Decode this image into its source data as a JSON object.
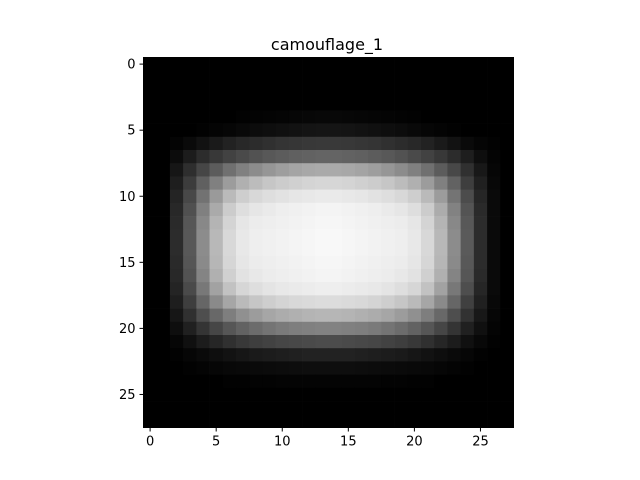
{
  "chart_data": {
    "type": "heatmap",
    "title": "camouflage_1",
    "xlabel": "",
    "ylabel": "",
    "colormap": "gray",
    "value_range": [
      0,
      255
    ],
    "xlim": [
      -0.5,
      27.5
    ],
    "ylim": [
      27.5,
      -0.5
    ],
    "xticks": [
      0,
      5,
      10,
      15,
      20,
      25
    ],
    "yticks": [
      0,
      5,
      10,
      15,
      20,
      25
    ],
    "xtick_labels": [
      "0",
      "5",
      "10",
      "15",
      "20",
      "25"
    ],
    "ytick_labels": [
      "0",
      "5",
      "10",
      "15",
      "20",
      "25"
    ],
    "grid": false,
    "legend": "none",
    "rows": 28,
    "cols": 28,
    "pixels": [
      [
        0,
        0,
        0,
        0,
        0,
        0,
        0,
        0,
        0,
        0,
        0,
        0,
        0,
        0,
        0,
        0,
        0,
        0,
        0,
        0,
        0,
        0,
        0,
        0,
        0,
        0,
        0,
        0
      ],
      [
        0,
        0,
        0,
        0,
        0,
        0,
        0,
        0,
        0,
        0,
        0,
        0,
        0,
        0,
        0,
        0,
        0,
        0,
        0,
        0,
        0,
        0,
        0,
        0,
        0,
        0,
        0,
        0
      ],
      [
        0,
        0,
        0,
        0,
        0,
        0,
        0,
        0,
        0,
        0,
        0,
        0,
        0,
        0,
        0,
        0,
        0,
        0,
        0,
        0,
        0,
        0,
        0,
        0,
        0,
        0,
        0,
        0
      ],
      [
        0,
        0,
        0,
        0,
        0,
        0,
        0,
        0,
        0,
        0,
        0,
        0,
        0,
        0,
        0,
        0,
        0,
        0,
        0,
        0,
        0,
        0,
        0,
        0,
        0,
        0,
        0,
        0
      ],
      [
        0,
        0,
        0,
        0,
        0,
        0,
        0,
        2,
        3,
        4,
        5,
        6,
        7,
        8,
        8,
        7,
        6,
        5,
        4,
        3,
        2,
        0,
        0,
        0,
        0,
        0,
        0,
        0
      ],
      [
        0,
        0,
        0,
        0,
        2,
        4,
        6,
        9,
        12,
        14,
        16,
        18,
        20,
        21,
        21,
        20,
        18,
        16,
        14,
        12,
        9,
        6,
        4,
        2,
        0,
        0,
        0,
        0
      ],
      [
        0,
        0,
        4,
        10,
        18,
        26,
        34,
        40,
        44,
        48,
        52,
        54,
        56,
        57,
        57,
        56,
        54,
        52,
        48,
        44,
        40,
        34,
        26,
        18,
        10,
        5,
        2,
        0
      ],
      [
        0,
        0,
        12,
        28,
        44,
        56,
        66,
        74,
        82,
        88,
        92,
        96,
        98,
        100,
        100,
        98,
        96,
        92,
        88,
        82,
        74,
        66,
        56,
        44,
        30,
        14,
        4,
        0
      ],
      [
        0,
        0,
        22,
        46,
        70,
        92,
        112,
        128,
        140,
        150,
        158,
        164,
        168,
        170,
        170,
        168,
        164,
        158,
        150,
        140,
        128,
        112,
        92,
        72,
        48,
        24,
        6,
        0
      ],
      [
        0,
        0,
        30,
        60,
        96,
        128,
        156,
        176,
        188,
        198,
        204,
        208,
        212,
        214,
        214,
        212,
        208,
        204,
        198,
        188,
        176,
        156,
        128,
        98,
        62,
        32,
        8,
        0
      ],
      [
        0,
        0,
        36,
        72,
        114,
        154,
        186,
        206,
        216,
        222,
        226,
        230,
        232,
        234,
        234,
        232,
        230,
        226,
        222,
        216,
        206,
        186,
        156,
        116,
        76,
        38,
        10,
        0
      ],
      [
        0,
        0,
        40,
        80,
        128,
        170,
        204,
        222,
        230,
        234,
        238,
        240,
        242,
        244,
        244,
        242,
        240,
        238,
        234,
        230,
        222,
        204,
        172,
        130,
        84,
        42,
        10,
        0
      ],
      [
        0,
        0,
        42,
        86,
        136,
        180,
        212,
        230,
        236,
        238,
        240,
        242,
        244,
        246,
        246,
        244,
        242,
        240,
        238,
        236,
        230,
        212,
        180,
        136,
        88,
        44,
        10,
        0
      ],
      [
        0,
        0,
        44,
        88,
        140,
        184,
        216,
        232,
        238,
        240,
        242,
        244,
        246,
        248,
        248,
        246,
        244,
        242,
        240,
        238,
        232,
        216,
        184,
        140,
        90,
        44,
        10,
        0
      ],
      [
        0,
        0,
        44,
        88,
        140,
        184,
        216,
        232,
        238,
        240,
        242,
        244,
        246,
        248,
        248,
        246,
        244,
        242,
        240,
        238,
        232,
        216,
        184,
        140,
        90,
        44,
        10,
        0
      ],
      [
        0,
        0,
        42,
        86,
        138,
        182,
        214,
        230,
        236,
        238,
        240,
        242,
        244,
        246,
        246,
        244,
        242,
        240,
        238,
        236,
        230,
        214,
        182,
        138,
        88,
        44,
        10,
        0
      ],
      [
        0,
        0,
        40,
        82,
        132,
        176,
        208,
        226,
        232,
        236,
        238,
        240,
        242,
        244,
        244,
        242,
        240,
        238,
        236,
        232,
        226,
        208,
        176,
        132,
        86,
        42,
        10,
        0
      ],
      [
        0,
        0,
        36,
        74,
        120,
        162,
        194,
        214,
        222,
        228,
        232,
        234,
        236,
        238,
        238,
        236,
        234,
        232,
        228,
        222,
        214,
        194,
        162,
        120,
        78,
        38,
        10,
        0
      ],
      [
        0,
        0,
        30,
        62,
        102,
        138,
        166,
        186,
        198,
        206,
        212,
        216,
        218,
        220,
        220,
        218,
        216,
        212,
        206,
        198,
        186,
        166,
        138,
        102,
        64,
        32,
        8,
        0
      ],
      [
        0,
        0,
        22,
        48,
        78,
        104,
        126,
        144,
        156,
        166,
        172,
        176,
        180,
        182,
        182,
        180,
        176,
        172,
        166,
        156,
        144,
        126,
        104,
        78,
        50,
        24,
        6,
        0
      ],
      [
        0,
        0,
        14,
        32,
        52,
        70,
        86,
        98,
        108,
        116,
        122,
        126,
        128,
        130,
        130,
        128,
        126,
        122,
        116,
        108,
        98,
        86,
        70,
        52,
        32,
        16,
        4,
        0
      ],
      [
        0,
        0,
        6,
        16,
        28,
        38,
        48,
        56,
        62,
        66,
        70,
        72,
        74,
        76,
        76,
        74,
        72,
        70,
        66,
        62,
        56,
        48,
        38,
        28,
        16,
        8,
        2,
        0
      ],
      [
        0,
        0,
        2,
        6,
        10,
        14,
        18,
        22,
        26,
        28,
        30,
        32,
        34,
        34,
        34,
        34,
        32,
        30,
        28,
        26,
        22,
        18,
        14,
        10,
        6,
        2,
        0,
        0
      ],
      [
        0,
        0,
        0,
        2,
        4,
        6,
        8,
        9,
        10,
        11,
        12,
        13,
        14,
        14,
        14,
        14,
        13,
        12,
        11,
        10,
        9,
        8,
        6,
        4,
        2,
        0,
        0,
        0
      ],
      [
        0,
        0,
        0,
        0,
        0,
        0,
        2,
        2,
        3,
        3,
        4,
        4,
        4,
        4,
        4,
        4,
        4,
        4,
        3,
        3,
        2,
        2,
        0,
        0,
        0,
        0,
        0,
        0
      ],
      [
        0,
        0,
        0,
        0,
        0,
        0,
        0,
        0,
        0,
        0,
        0,
        0,
        0,
        0,
        0,
        0,
        0,
        0,
        0,
        0,
        0,
        0,
        0,
        0,
        0,
        0,
        0,
        0
      ],
      [
        0,
        0,
        0,
        0,
        0,
        0,
        0,
        0,
        0,
        0,
        0,
        0,
        0,
        0,
        0,
        0,
        0,
        0,
        0,
        0,
        0,
        0,
        0,
        0,
        0,
        0,
        0,
        0
      ],
      [
        0,
        0,
        0,
        0,
        0,
        0,
        0,
        0,
        0,
        0,
        0,
        0,
        0,
        0,
        0,
        0,
        0,
        0,
        0,
        0,
        0,
        0,
        0,
        0,
        0,
        0,
        0,
        0
      ]
    ]
  }
}
